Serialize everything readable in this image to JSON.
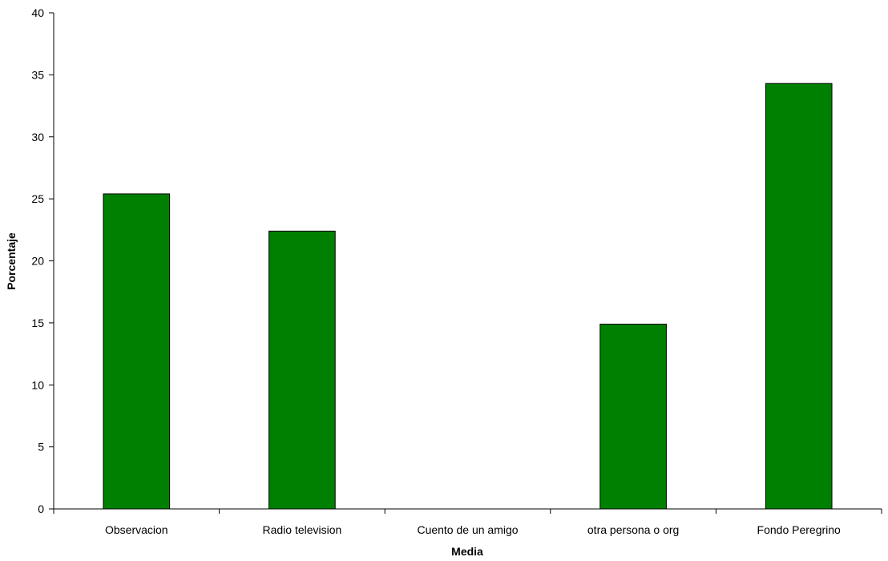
{
  "chart_data": {
    "type": "bar",
    "title": "",
    "xlabel": "Media",
    "ylabel": "Porcentaje",
    "categories": [
      "Observacion",
      "Radio television",
      "Cuento de un amigo",
      "otra persona o org",
      "Fondo Peregrino"
    ],
    "values": [
      25.4,
      22.4,
      0,
      14.9,
      34.3
    ],
    "ylim": [
      0,
      40
    ],
    "yticks": [
      "0",
      "5",
      "10",
      "15",
      "20",
      "25",
      "30",
      "35",
      "40"
    ],
    "grid": false,
    "legend": "none",
    "colors": {
      "bar_fill": "#008000",
      "bar_stroke": "#000000",
      "axis": "#000000"
    }
  }
}
